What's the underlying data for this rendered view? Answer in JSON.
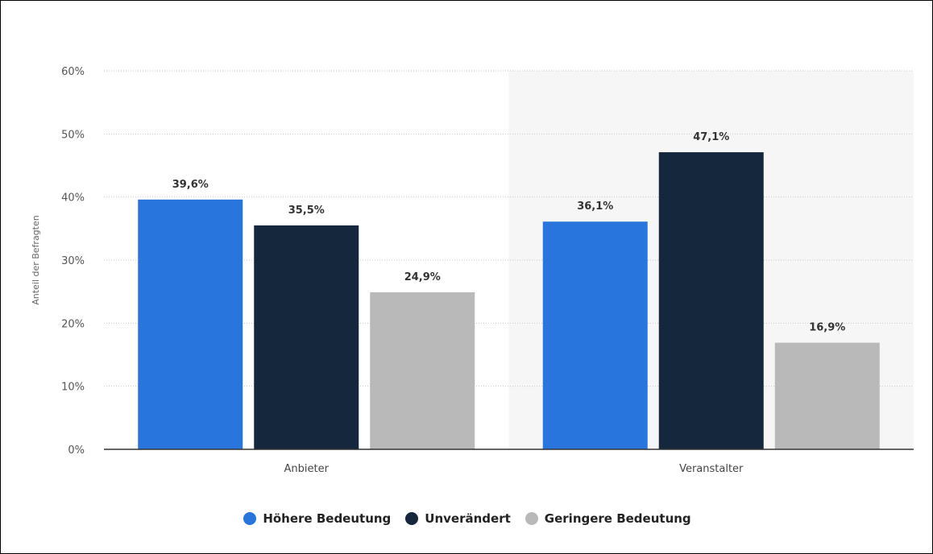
{
  "chart_data": {
    "type": "bar",
    "categories": [
      "Anbieter",
      "Veranstalter"
    ],
    "series": [
      {
        "name": "Höhere Bedeutung",
        "values": [
          39.6,
          36.1
        ],
        "labels": [
          "39,6%",
          "36,1%"
        ]
      },
      {
        "name": "Unverändert",
        "values": [
          35.5,
          47.1
        ],
        "labels": [
          "35,5%",
          "47,1%"
        ]
      },
      {
        "name": "Geringere Bedeutung",
        "values": [
          24.9,
          16.9
        ],
        "labels": [
          "24,9%",
          "16,9%"
        ]
      }
    ],
    "ylabel": "Anteil der Befragten",
    "ylim": [
      0,
      60
    ],
    "yticks": [
      0,
      10,
      20,
      30,
      40,
      50,
      60
    ],
    "ytick_labels": [
      "0%",
      "10%",
      "20%",
      "30%",
      "40%",
      "50%",
      "60%"
    ],
    "grid": true,
    "highlighted_category": "Veranstalter",
    "legend_position": "bottom"
  },
  "colors": {
    "series": [
      "#2876dd",
      "#14273d",
      "#b9b9b9"
    ],
    "highlight_background": "#f6f6f6",
    "grid": "#c8c8c8",
    "axis": "#333333"
  }
}
